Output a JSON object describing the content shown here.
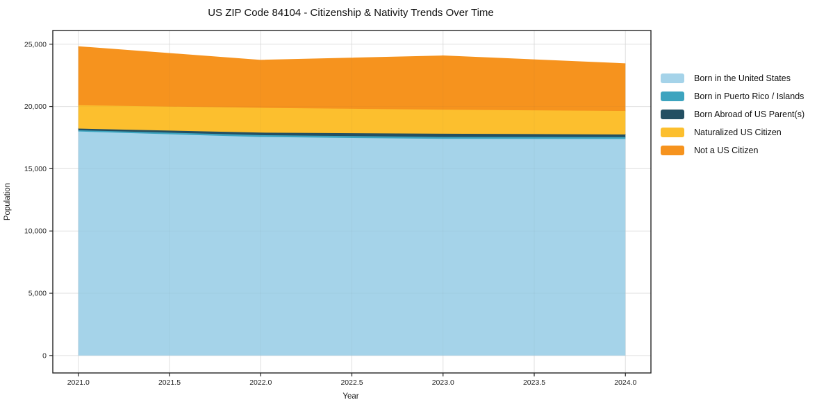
{
  "chart_data": {
    "type": "area",
    "stacked": true,
    "title": "US ZIP Code 84104 - Citizenship & Nativity Trends Over Time",
    "xlabel": "Year",
    "ylabel": "Population",
    "x": [
      2021,
      2022,
      2023,
      2024
    ],
    "series": [
      {
        "name": "Born in the United States",
        "color": "#a5d3e9",
        "values": [
          17990,
          17550,
          17400,
          17390
        ]
      },
      {
        "name": "Born in Puerto Rico / Islands",
        "color": "#3da4bf",
        "values": [
          100,
          150,
          150,
          150
        ]
      },
      {
        "name": "Born Abroad of US Parent(s)",
        "color": "#234f62",
        "values": [
          130,
          200,
          260,
          210
        ]
      },
      {
        "name": "Naturalized US Citizen",
        "color": "#fcbf2e",
        "values": [
          1880,
          1990,
          1930,
          1890
        ]
      },
      {
        "name": "Not a US Citizen",
        "color": "#f6931e",
        "values": [
          4690,
          3810,
          4310,
          3780
        ]
      }
    ],
    "totals": [
      24790,
      23700,
      24050,
      23420
    ],
    "xticks": {
      "values": [
        2021.0,
        2021.5,
        2022.0,
        2022.5,
        2023.0,
        2023.5,
        2024.0
      ],
      "labels": [
        "2021.0",
        "2021.5",
        "2022.0",
        "2022.5",
        "2023.0",
        "2023.5",
        "2024.0"
      ]
    },
    "yticks": {
      "values": [
        0,
        5000,
        10000,
        15000,
        20000,
        25000
      ],
      "labels": [
        "0",
        "5,000",
        "10,000",
        "15,000",
        "20,000",
        "25,000"
      ]
    },
    "xlim": [
      2020.86,
      2024.14
    ],
    "ylim": [
      -1400,
      26100
    ],
    "grid": true,
    "legend_position": "right",
    "colors": {
      "grid": "#e7e7e7",
      "axis": "#222222",
      "background": "#ffffff"
    }
  }
}
